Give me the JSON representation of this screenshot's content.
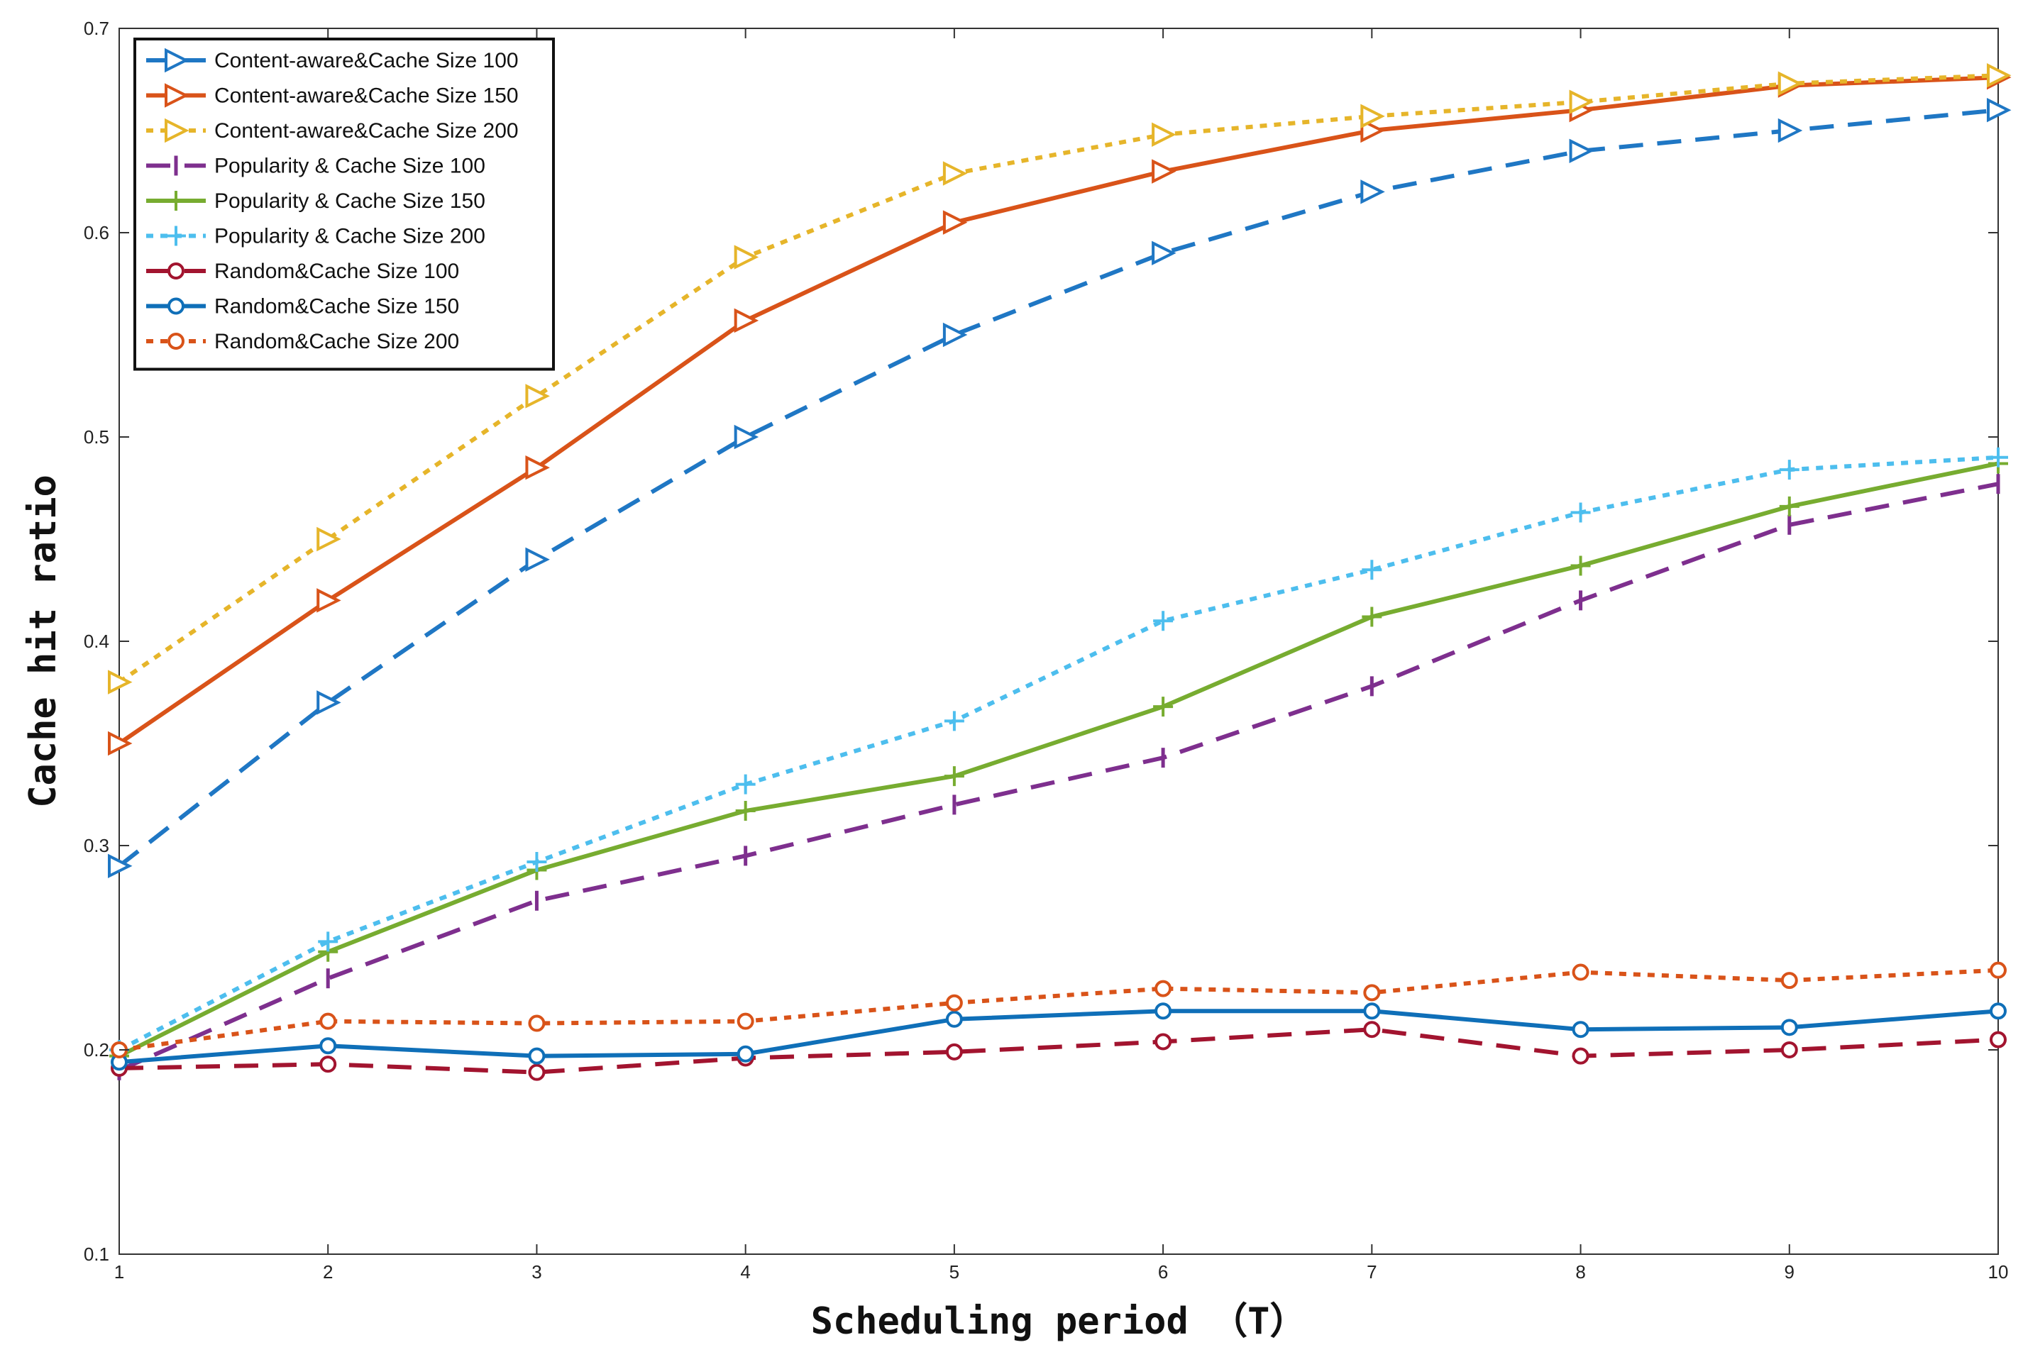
{
  "chart_data": {
    "type": "line",
    "title": "",
    "xlabel": "Scheduling period （T）",
    "ylabel": "Cache hit ratio",
    "x": [
      1,
      2,
      3,
      4,
      5,
      6,
      7,
      8,
      9,
      10
    ],
    "xlim": [
      1,
      10
    ],
    "ylim": [
      0.1,
      0.7
    ],
    "xticks": [
      "1",
      "2",
      "3",
      "4",
      "5",
      "6",
      "7",
      "8",
      "9",
      "10"
    ],
    "yticks": [
      "0.1",
      "0.2",
      "0.3",
      "0.4",
      "0.5",
      "0.6",
      "0.7"
    ],
    "legend_position": "top-left",
    "series": [
      {
        "name": "Content-aware&Cache Size 100",
        "color": "#1f77c4",
        "dash": "dashed",
        "marker": "triangle-right",
        "values": [
          0.29,
          0.37,
          0.44,
          0.5,
          0.55,
          0.59,
          0.62,
          0.64,
          0.65,
          0.66
        ]
      },
      {
        "name": "Content-aware&Cache Size 150",
        "color": "#d95319",
        "dash": "solid",
        "marker": "triangle-right",
        "values": [
          0.35,
          0.42,
          0.485,
          0.557,
          0.605,
          0.63,
          0.65,
          0.66,
          0.672,
          0.676
        ]
      },
      {
        "name": "Content-aware&Cache Size 200",
        "color": "#e6b52a",
        "dash": "dotted",
        "marker": "triangle-right",
        "values": [
          0.38,
          0.45,
          0.52,
          0.588,
          0.629,
          0.648,
          0.657,
          0.664,
          0.673,
          0.677
        ]
      },
      {
        "name": "Popularity & Cache Size 100",
        "color": "#7e2f8e",
        "dash": "dashed",
        "marker": "vbar",
        "values": [
          0.19,
          0.235,
          0.273,
          0.295,
          0.32,
          0.343,
          0.378,
          0.42,
          0.457,
          0.477
        ]
      },
      {
        "name": "Popularity & Cache Size 150",
        "color": "#77ac30",
        "dash": "solid",
        "marker": "plus",
        "values": [
          0.197,
          0.248,
          0.288,
          0.317,
          0.334,
          0.368,
          0.412,
          0.437,
          0.466,
          0.487
        ]
      },
      {
        "name": "Popularity & Cache Size 200",
        "color": "#4dbeee",
        "dash": "dotted",
        "marker": "plus",
        "values": [
          0.2,
          0.253,
          0.292,
          0.33,
          0.361,
          0.41,
          0.435,
          0.463,
          0.484,
          0.49
        ]
      },
      {
        "name": "Random&Cache Size 100",
        "color": "#a2142f",
        "dash": "dashed",
        "marker": "circle",
        "values": [
          0.191,
          0.193,
          0.189,
          0.196,
          0.199,
          0.204,
          0.21,
          0.197,
          0.2,
          0.205
        ]
      },
      {
        "name": "Random&Cache Size 150",
        "color": "#0f6fb8",
        "dash": "solid",
        "marker": "circle",
        "values": [
          0.194,
          0.202,
          0.197,
          0.198,
          0.215,
          0.219,
          0.219,
          0.21,
          0.211,
          0.219
        ]
      },
      {
        "name": "Random&Cache Size 200",
        "color": "#d95319",
        "dash": "dotted",
        "marker": "circle",
        "values": [
          0.2,
          0.214,
          0.213,
          0.214,
          0.223,
          0.23,
          0.228,
          0.238,
          0.234,
          0.239
        ]
      }
    ]
  }
}
